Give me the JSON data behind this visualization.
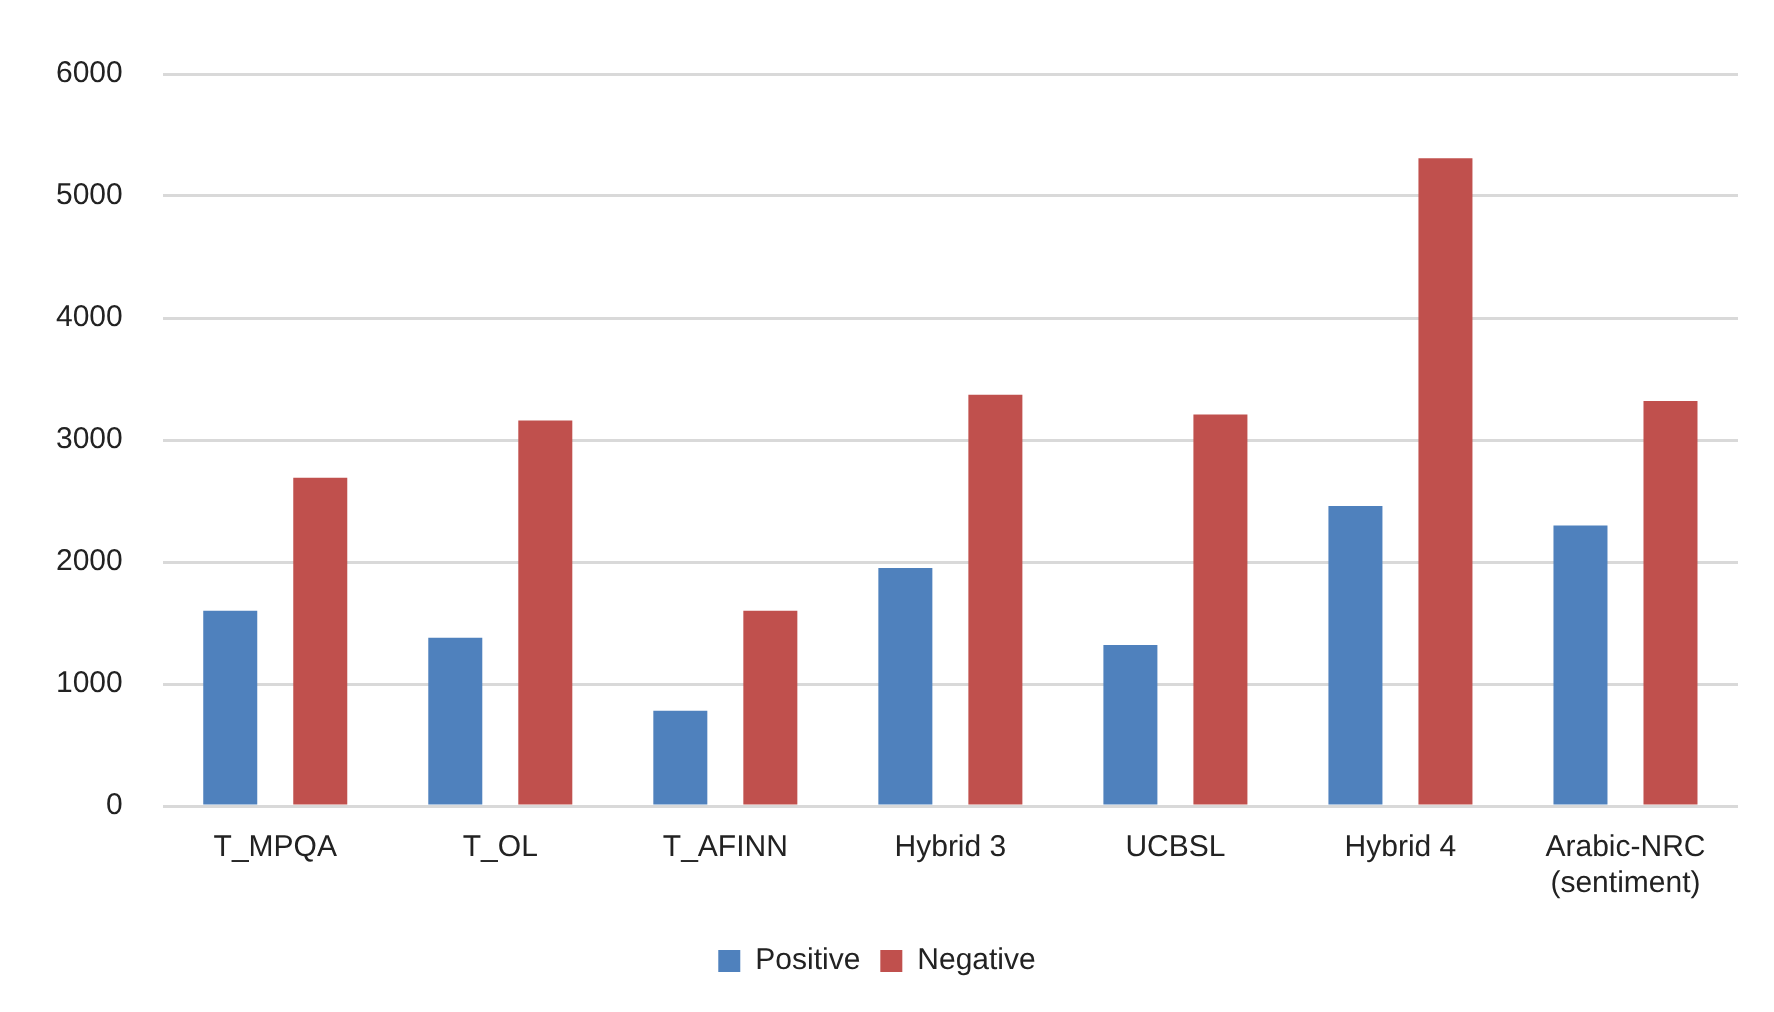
{
  "chart_data": {
    "type": "bar",
    "categories": [
      "T_MPQA",
      "T_OL",
      "T_AFINN",
      "Hybrid 3",
      "UCBSL",
      "Hybrid 4",
      "Arabic-NRC (sentiment)"
    ],
    "series": [
      {
        "name": "Positive",
        "color": "#4f81bd",
        "values": [
          1600,
          1380,
          780,
          1950,
          1320,
          2460,
          2300
        ]
      },
      {
        "name": "Negative",
        "color": "#c0504d",
        "values": [
          2690,
          3160,
          1600,
          3370,
          3210,
          5310,
          3320
        ]
      }
    ],
    "ylim": [
      0,
      6000
    ],
    "yticks": [
      0,
      1000,
      2000,
      3000,
      4000,
      5000,
      6000
    ],
    "grid": "y",
    "legend": "bottom"
  }
}
